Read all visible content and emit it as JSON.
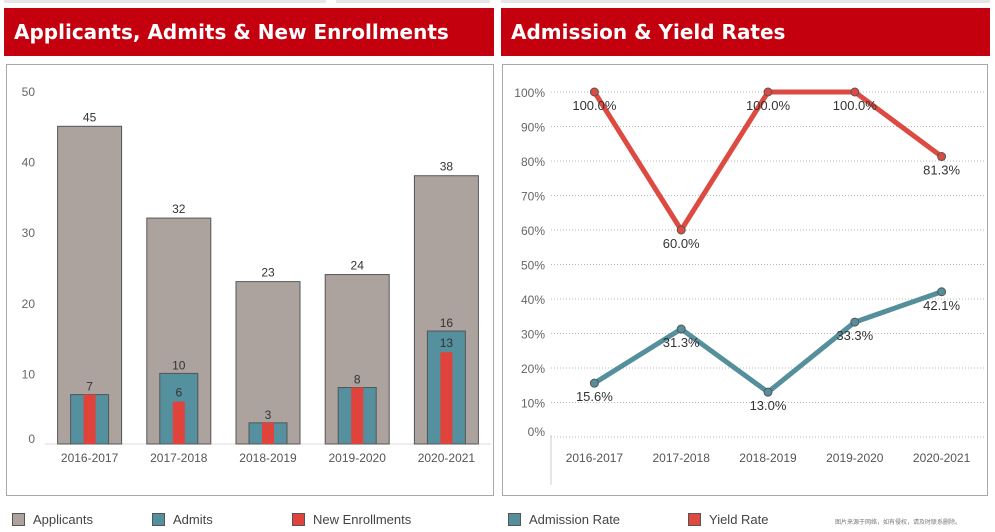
{
  "left_panel": {
    "title": "Applicants, Admits & New Enrollments"
  },
  "right_panel": {
    "title": "Admission & Yield Rates"
  },
  "colors": {
    "header": "#c4000f",
    "applicants": "#aca39f",
    "admits": "#55909e",
    "enrollments": "#e0423c",
    "admission_rate": "#558f9c",
    "yield_rate": "#dd4a42"
  },
  "legend_left": [
    {
      "label": "Applicants",
      "color": "#aca39f"
    },
    {
      "label": "Admits",
      "color": "#55909e"
    },
    {
      "label": "New Enrollments",
      "color": "#e0423c"
    }
  ],
  "legend_right": [
    {
      "label": "Admission Rate",
      "color": "#558f9c"
    },
    {
      "label": "Yield Rate",
      "color": "#dd4a42"
    }
  ],
  "footnote": "图片来源于网络，如有侵权，请及时联系删除。",
  "chart_data": [
    {
      "type": "bar",
      "title": "Applicants, Admits & New Enrollments",
      "categories": [
        "2016-2017",
        "2017-2018",
        "2018-2019",
        "2019-2020",
        "2020-2021"
      ],
      "series": [
        {
          "name": "Applicants",
          "values": [
            45,
            32,
            23,
            24,
            38
          ]
        },
        {
          "name": "Admits",
          "values": [
            7,
            10,
            3,
            8,
            16
          ]
        },
        {
          "name": "New Enrollments",
          "values": [
            7,
            6,
            3,
            8,
            13
          ]
        }
      ],
      "value_labels": {
        "Applicants": [
          "45",
          "32",
          "23",
          "24",
          "38"
        ],
        "Admits": [
          "7",
          "10",
          "3",
          "8",
          "16"
        ],
        "New Enrollments": [
          "",
          "6",
          "",
          "",
          "13"
        ]
      },
      "yticks": [
        0,
        10,
        20,
        30,
        40,
        50
      ],
      "ylim": [
        0,
        50
      ],
      "grid": false
    },
    {
      "type": "line",
      "title": "Admission & Yield Rates",
      "categories": [
        "2016-2017",
        "2017-2018",
        "2018-2019",
        "2019-2020",
        "2020-2021"
      ],
      "series": [
        {
          "name": "Yield Rate",
          "values": [
            100.0,
            60.0,
            100.0,
            100.0,
            81.3
          ],
          "labels": [
            "100.0%",
            "60.0%",
            "100.0%",
            "100.0%",
            "81.3%"
          ]
        },
        {
          "name": "Admission Rate",
          "values": [
            15.6,
            31.3,
            13.0,
            33.3,
            42.1
          ],
          "labels": [
            "15.6%",
            "31.3%",
            "13.0%",
            "33.3%",
            "42.1%"
          ]
        }
      ],
      "yticks": [
        "0%",
        "10%",
        "20%",
        "30%",
        "40%",
        "50%",
        "60%",
        "70%",
        "80%",
        "90%",
        "100%"
      ],
      "ylim": [
        0,
        100
      ],
      "grid": true
    }
  ]
}
